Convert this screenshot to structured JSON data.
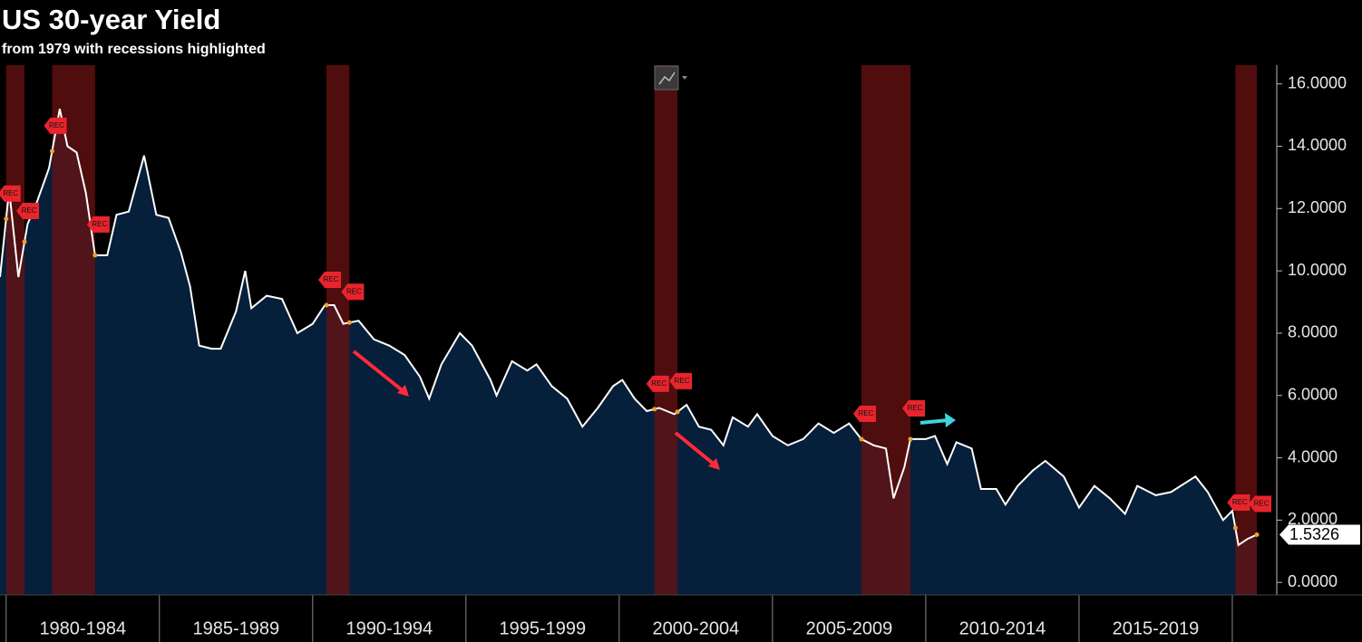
{
  "chart_data": {
    "type": "area",
    "title": "US 30-year Yield",
    "subtitle": "from 1979 with recessions highlighted",
    "x": [
      1979.8,
      1980.1,
      1980.4,
      1980.7,
      1981.0,
      1981.4,
      1981.75,
      1982.0,
      1982.3,
      1982.6,
      1982.9,
      1983.3,
      1983.6,
      1984.0,
      1984.5,
      1984.9,
      1985.3,
      1985.7,
      1986.0,
      1986.3,
      1986.7,
      1987.0,
      1987.5,
      1987.8,
      1988.0,
      1988.5,
      1989.0,
      1989.5,
      1990.0,
      1990.4,
      1990.7,
      1991.0,
      1991.5,
      1992.0,
      1992.5,
      1993.0,
      1993.5,
      1993.8,
      1994.2,
      1994.8,
      1995.2,
      1995.8,
      1996.0,
      1996.5,
      1997.0,
      1997.3,
      1997.8,
      1998.3,
      1998.8,
      1999.3,
      1999.8,
      2000.1,
      2000.5,
      2000.9,
      2001.3,
      2001.8,
      2002.2,
      2002.6,
      2003.0,
      2003.4,
      2003.7,
      2004.2,
      2004.5,
      2005.0,
      2005.5,
      2006.0,
      2006.5,
      2007.0,
      2007.5,
      2007.9,
      2008.3,
      2008.7,
      2008.95,
      2009.3,
      2009.5,
      2010.0,
      2010.3,
      2010.7,
      2011.0,
      2011.5,
      2011.8,
      2012.3,
      2012.6,
      2013.0,
      2013.5,
      2013.9,
      2014.5,
      2015.0,
      2015.5,
      2016.0,
      2016.5,
      2016.9,
      2017.5,
      2018.0,
      2018.8,
      2019.2,
      2019.7,
      2020.0,
      2020.2,
      2020.5,
      2020.8
    ],
    "series": [
      {
        "color": "#ffffff",
        "fill": "#061f3b",
        "values": [
          9.8,
          12.6,
          9.8,
          11.5,
          12.2,
          13.3,
          15.2,
          14.0,
          13.8,
          12.5,
          10.5,
          10.5,
          11.8,
          11.9,
          13.7,
          11.8,
          11.7,
          10.6,
          9.5,
          7.6,
          7.5,
          7.5,
          8.7,
          10.0,
          8.8,
          9.2,
          9.1,
          8.0,
          8.3,
          8.9,
          8.9,
          8.3,
          8.4,
          7.8,
          7.6,
          7.3,
          6.6,
          5.9,
          7.0,
          8.0,
          7.6,
          6.5,
          6.0,
          7.1,
          6.8,
          7.0,
          6.3,
          5.9,
          5.0,
          5.6,
          6.3,
          6.5,
          5.9,
          5.5,
          5.6,
          5.4,
          5.7,
          5.0,
          4.9,
          4.4,
          5.3,
          5.0,
          5.4,
          4.7,
          4.4,
          4.6,
          5.1,
          4.8,
          5.1,
          4.6,
          4.4,
          4.3,
          2.7,
          3.7,
          4.6,
          4.6,
          4.7,
          3.8,
          4.5,
          4.3,
          3.0,
          3.0,
          2.5,
          3.1,
          3.6,
          3.9,
          3.4,
          2.4,
          3.1,
          2.7,
          2.2,
          3.1,
          2.8,
          2.9,
          3.4,
          2.9,
          2.0,
          2.3,
          1.2,
          1.4,
          1.5326
        ]
      }
    ],
    "xlim": [
      1979.8,
      2021.45
    ],
    "xticks": [
      {
        "value": 1982.5,
        "label": "1980-1984"
      },
      {
        "value": 1987.5,
        "label": "1985-1989"
      },
      {
        "value": 1992.5,
        "label": "1990-1994"
      },
      {
        "value": 1997.5,
        "label": "1995-1999"
      },
      {
        "value": 2002.5,
        "label": "2000-2004"
      },
      {
        "value": 2007.5,
        "label": "2005-2009"
      },
      {
        "value": 2012.5,
        "label": "2010-2014"
      },
      {
        "value": 2017.5,
        "label": "2015-2019"
      }
    ],
    "ylim": [
      -0.4,
      16.6
    ],
    "yticks": [
      {
        "value": 0,
        "label": "0.0000"
      },
      {
        "value": 2,
        "label": "2.0000"
      },
      {
        "value": 4,
        "label": "4.0000"
      },
      {
        "value": 6,
        "label": "6.0000"
      },
      {
        "value": 8,
        "label": "8.0000"
      },
      {
        "value": 10,
        "label": "10.0000"
      },
      {
        "value": 12,
        "label": "12.0000"
      },
      {
        "value": 14,
        "label": "14.0000"
      },
      {
        "value": 16,
        "label": "16.0000"
      }
    ],
    "recession_label": "REC",
    "recession_color": "#6b1212",
    "recessions": [
      {
        "start": 1980.0,
        "end": 1980.6
      },
      {
        "start": 1981.5,
        "end": 1982.9
      },
      {
        "start": 1990.45,
        "end": 1991.2
      },
      {
        "start": 2001.15,
        "end": 2001.9
      },
      {
        "start": 2007.9,
        "end": 2009.5
      },
      {
        "start": 2020.1,
        "end": 2020.8
      }
    ]
  }
}
